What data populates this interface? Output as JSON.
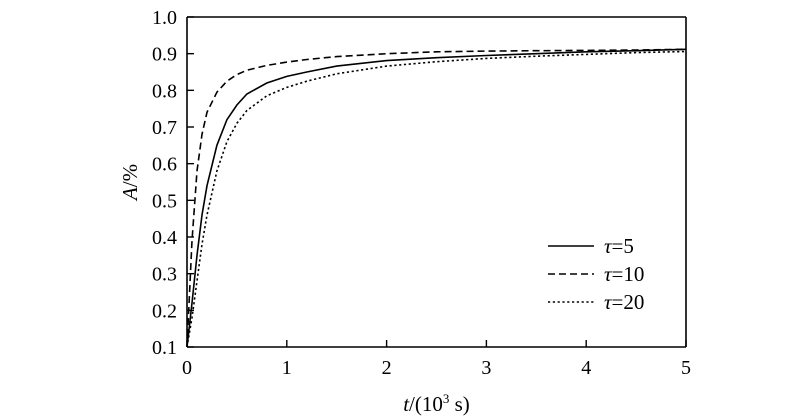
{
  "chart_data": {
    "type": "line",
    "xlabel": {
      "var": "t",
      "rest": "/(10",
      "exp": "3",
      "unit": " s)"
    },
    "ylabel": {
      "var": "A",
      "rest": "/%"
    },
    "xlim": [
      0,
      5
    ],
    "ylim": [
      0.1,
      1.0
    ],
    "x_ticks": [
      0,
      1,
      2,
      3,
      4,
      5
    ],
    "x_tick_labels": [
      "0",
      "1",
      "2",
      "3",
      "4",
      "5"
    ],
    "y_ticks": [
      0.1,
      0.2,
      0.3,
      0.4,
      0.5,
      0.6,
      0.7,
      0.8,
      0.9,
      1.0
    ],
    "y_tick_labels": [
      "0.1",
      "0.2",
      "0.3",
      "0.4",
      "0.5",
      "0.6",
      "0.7",
      "0.8",
      "0.9",
      "1.0"
    ],
    "grid": false,
    "legend_position": "bottom-right",
    "series": [
      {
        "symbol": "τ",
        "label_rest": "=5",
        "dash": "solid",
        "x": [
          0,
          0.05,
          0.1,
          0.15,
          0.2,
          0.3,
          0.4,
          0.5,
          0.6,
          0.8,
          1.0,
          1.2,
          1.5,
          2.0,
          2.5,
          3.0,
          3.5,
          4.0,
          4.5,
          5.0
        ],
        "y": [
          0.1,
          0.22,
          0.35,
          0.46,
          0.54,
          0.65,
          0.72,
          0.76,
          0.79,
          0.82,
          0.838,
          0.85,
          0.866,
          0.881,
          0.889,
          0.895,
          0.9,
          0.905,
          0.908,
          0.912
        ]
      },
      {
        "symbol": "τ",
        "label_rest": "=10",
        "dash": "dashed",
        "x": [
          0,
          0.05,
          0.1,
          0.15,
          0.2,
          0.3,
          0.4,
          0.5,
          0.6,
          0.8,
          1.0,
          1.2,
          1.5,
          2.0,
          2.5,
          3.0,
          3.5,
          4.0,
          4.5,
          5.0
        ],
        "y": [
          0.1,
          0.39,
          0.58,
          0.68,
          0.74,
          0.795,
          0.825,
          0.843,
          0.855,
          0.868,
          0.877,
          0.884,
          0.892,
          0.9,
          0.905,
          0.907,
          0.908,
          0.909,
          0.91,
          0.912
        ]
      },
      {
        "symbol": "τ",
        "label_rest": "=20",
        "dash": "dotted",
        "x": [
          0,
          0.05,
          0.1,
          0.15,
          0.2,
          0.3,
          0.4,
          0.5,
          0.6,
          0.8,
          1.0,
          1.2,
          1.5,
          2.0,
          2.5,
          3.0,
          3.5,
          4.0,
          4.5,
          5.0
        ],
        "y": [
          0.1,
          0.18,
          0.28,
          0.38,
          0.46,
          0.58,
          0.66,
          0.71,
          0.745,
          0.785,
          0.808,
          0.825,
          0.845,
          0.866,
          0.878,
          0.887,
          0.893,
          0.898,
          0.903,
          0.906
        ]
      }
    ]
  }
}
